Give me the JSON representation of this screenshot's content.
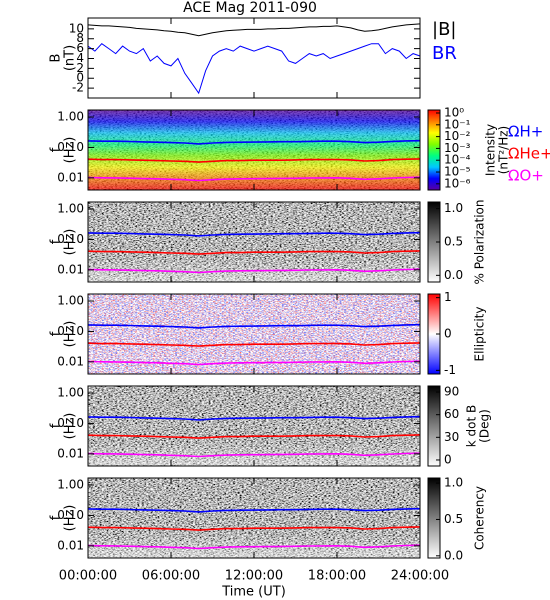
{
  "chart_data": [
    {
      "type": "line",
      "title": "ACE Mag 2011-090",
      "y_label_lines": [
        "B",
        "(nT)"
      ],
      "ylim": [
        -4,
        12.2
      ],
      "yticks": [
        -2,
        0,
        2,
        4,
        6,
        8,
        10
      ],
      "x": [
        0,
        0.5,
        1,
        1.5,
        2,
        2.5,
        3,
        3.5,
        4,
        4.5,
        5,
        5.5,
        6,
        6.5,
        7,
        7.5,
        8,
        8.5,
        9,
        9.5,
        10,
        10.5,
        11,
        11.5,
        12,
        12.5,
        13,
        13.5,
        14,
        14.5,
        15,
        15.5,
        16,
        16.5,
        17,
        17.5,
        18,
        18.5,
        19,
        19.5,
        20,
        20.5,
        21,
        21.5,
        22,
        22.5,
        23,
        23.5,
        24
      ],
      "series": [
        {
          "name": "|B|",
          "color": "#000000",
          "values": [
            10.8,
            10.7,
            10.6,
            10.6,
            10.5,
            10.4,
            10.3,
            10.1,
            10.0,
            9.9,
            9.8,
            9.6,
            9.5,
            9.3,
            9.2,
            8.9,
            8.6,
            8.9,
            9.2,
            9.4,
            9.6,
            9.7,
            9.8,
            9.9,
            9.9,
            9.9,
            10.0,
            10.0,
            10.1,
            10.1,
            10.2,
            10.3,
            10.4,
            10.4,
            10.5,
            10.5,
            10.6,
            10.4,
            10.2,
            9.8,
            9.5,
            9.6,
            9.8,
            10.1,
            10.4,
            10.6,
            10.8,
            10.9,
            11.0
          ]
        },
        {
          "name": "BR",
          "color": "#0000ff",
          "values": [
            6.5,
            5.5,
            7,
            6,
            5,
            6.5,
            5.5,
            5,
            6,
            3.5,
            4.5,
            3,
            2.5,
            4,
            1,
            -1,
            -3,
            1.5,
            4.5,
            5.5,
            6,
            5.5,
            6.5,
            6,
            5.5,
            6,
            6.5,
            6,
            5.5,
            3.5,
            3,
            4,
            5,
            4.5,
            5,
            4,
            4.5,
            5,
            5.5,
            6,
            6.5,
            7,
            7,
            5,
            6,
            5.5,
            4,
            5,
            4.5
          ]
        }
      ]
    },
    {
      "type": "spectrogram",
      "y_label_lines": [
        "f",
        "(Hz)"
      ],
      "yscale": "log",
      "ylim": [
        0.004,
        1.7
      ],
      "yticks": [
        {
          "value": 1,
          "label": "1.00"
        },
        {
          "value": 0.1,
          "label": "0.10"
        },
        {
          "value": 0.01,
          "label": "0.01"
        }
      ],
      "colorbar": {
        "label_lines": [
          "Intensity",
          "(nT²/Hz)"
        ],
        "scale": "log",
        "lim": [
          3e-07,
          1.8
        ],
        "ticks": [
          {
            "value": 1,
            "label": "10⁰"
          },
          {
            "value": 0.1,
            "label": "10⁻¹"
          },
          {
            "value": 0.01,
            "label": "10⁻²"
          },
          {
            "value": 0.001,
            "label": "10⁻³"
          },
          {
            "value": 0.0001,
            "label": "10⁻⁴"
          },
          {
            "value": 1e-05,
            "label": "10⁻⁵"
          },
          {
            "value": 1e-06,
            "label": "10⁻⁶"
          }
        ],
        "colors": [
          "#5a00a0",
          "#0000ff",
          "#00c8ff",
          "#00ff80",
          "#80ff00",
          "#ffff00",
          "#ff8000",
          "#ff0000"
        ]
      },
      "x": [
        0,
        1,
        2,
        3,
        4,
        5,
        6,
        7,
        8,
        9,
        10,
        11,
        12,
        13,
        14,
        15,
        16,
        17,
        18,
        19,
        20,
        21,
        22,
        23,
        24
      ],
      "series": [
        {
          "name": "ΩH+",
          "color": "#0000ff",
          "values": [
            0.164,
            0.161,
            0.16,
            0.157,
            0.152,
            0.149,
            0.144,
            0.14,
            0.131,
            0.14,
            0.146,
            0.149,
            0.15,
            0.152,
            0.154,
            0.155,
            0.158,
            0.16,
            0.161,
            0.155,
            0.144,
            0.149,
            0.158,
            0.164,
            0.167
          ]
        },
        {
          "name": "ΩHe+",
          "color": "#ff0000",
          "values": [
            0.041,
            0.04,
            0.04,
            0.039,
            0.038,
            0.037,
            0.036,
            0.035,
            0.033,
            0.035,
            0.037,
            0.037,
            0.038,
            0.038,
            0.038,
            0.039,
            0.04,
            0.04,
            0.04,
            0.039,
            0.036,
            0.037,
            0.04,
            0.041,
            0.042
          ]
        },
        {
          "name": "ΩO+",
          "color": "#ff00ff",
          "values": [
            0.0103,
            0.0101,
            0.01,
            0.0098,
            0.0095,
            0.0093,
            0.009,
            0.0087,
            0.0082,
            0.0087,
            0.0091,
            0.0093,
            0.0094,
            0.0095,
            0.0096,
            0.0097,
            0.0099,
            0.01,
            0.0101,
            0.0097,
            0.009,
            0.0093,
            0.0099,
            0.0103,
            0.0105
          ]
        }
      ]
    },
    {
      "type": "spectrogram",
      "y_label_lines": [
        "f",
        "(Hz)"
      ],
      "yscale": "log",
      "ylim": [
        0.004,
        1.7
      ],
      "yticks": [
        {
          "value": 1,
          "label": "1.00"
        },
        {
          "value": 0.1,
          "label": "0.10"
        },
        {
          "value": 0.01,
          "label": "0.01"
        }
      ],
      "colorbar": {
        "label_lines": [
          "% Polarization"
        ],
        "scale": "linear",
        "lim": [
          -0.1,
          1.1
        ],
        "ticks": [
          {
            "value": 1,
            "label": "1.0"
          },
          {
            "value": 0.5,
            "label": "0.5"
          },
          {
            "value": 0,
            "label": "0.0"
          }
        ],
        "colors": [
          "#ffffff",
          "#000000"
        ]
      },
      "x": [
        0,
        1,
        2,
        3,
        4,
        5,
        6,
        7,
        8,
        9,
        10,
        11,
        12,
        13,
        14,
        15,
        16,
        17,
        18,
        19,
        20,
        21,
        22,
        23,
        24
      ],
      "series": [
        {
          "color": "#0000ff",
          "values": [
            0.164,
            0.161,
            0.16,
            0.157,
            0.152,
            0.149,
            0.144,
            0.14,
            0.131,
            0.14,
            0.146,
            0.149,
            0.15,
            0.152,
            0.154,
            0.155,
            0.158,
            0.16,
            0.161,
            0.155,
            0.144,
            0.149,
            0.158,
            0.164,
            0.167
          ]
        },
        {
          "color": "#ff0000",
          "values": [
            0.041,
            0.04,
            0.04,
            0.039,
            0.038,
            0.037,
            0.036,
            0.035,
            0.033,
            0.035,
            0.037,
            0.037,
            0.038,
            0.038,
            0.038,
            0.039,
            0.04,
            0.04,
            0.04,
            0.039,
            0.036,
            0.037,
            0.04,
            0.041,
            0.042
          ]
        },
        {
          "color": "#ff00ff",
          "values": [
            0.0103,
            0.0101,
            0.01,
            0.0098,
            0.0095,
            0.0093,
            0.009,
            0.0087,
            0.0082,
            0.0087,
            0.0091,
            0.0093,
            0.0094,
            0.0095,
            0.0096,
            0.0097,
            0.0099,
            0.01,
            0.0101,
            0.0097,
            0.009,
            0.0093,
            0.0099,
            0.0103,
            0.0105
          ]
        }
      ]
    },
    {
      "type": "spectrogram",
      "y_label_lines": [
        "f",
        "(Hz)"
      ],
      "yscale": "log",
      "ylim": [
        0.004,
        1.7
      ],
      "yticks": [
        {
          "value": 1,
          "label": "1.00"
        },
        {
          "value": 0.1,
          "label": "0.10"
        },
        {
          "value": 0.01,
          "label": "0.01"
        }
      ],
      "colorbar": {
        "label_lines": [
          "Ellipticity"
        ],
        "scale": "linear",
        "lim": [
          -1.1,
          1.1
        ],
        "ticks": [
          1,
          0,
          -1
        ],
        "colors": [
          "#0000ff",
          "#ffffff",
          "#ff0000"
        ]
      },
      "x": [
        0,
        1,
        2,
        3,
        4,
        5,
        6,
        7,
        8,
        9,
        10,
        11,
        12,
        13,
        14,
        15,
        16,
        17,
        18,
        19,
        20,
        21,
        22,
        23,
        24
      ],
      "series": [
        {
          "color": "#0000ff",
          "values": [
            0.164,
            0.161,
            0.16,
            0.157,
            0.152,
            0.149,
            0.144,
            0.14,
            0.131,
            0.14,
            0.146,
            0.149,
            0.15,
            0.152,
            0.154,
            0.155,
            0.158,
            0.16,
            0.161,
            0.155,
            0.144,
            0.149,
            0.158,
            0.164,
            0.167
          ]
        },
        {
          "color": "#ff0000",
          "values": [
            0.041,
            0.04,
            0.04,
            0.039,
            0.038,
            0.037,
            0.036,
            0.035,
            0.033,
            0.035,
            0.037,
            0.037,
            0.038,
            0.038,
            0.038,
            0.039,
            0.04,
            0.04,
            0.04,
            0.039,
            0.036,
            0.037,
            0.04,
            0.041,
            0.042
          ]
        },
        {
          "color": "#ff00ff",
          "values": [
            0.0103,
            0.0101,
            0.01,
            0.0098,
            0.0095,
            0.0093,
            0.009,
            0.0087,
            0.0082,
            0.0087,
            0.0091,
            0.0093,
            0.0094,
            0.0095,
            0.0096,
            0.0097,
            0.0099,
            0.01,
            0.0101,
            0.0097,
            0.009,
            0.0093,
            0.0099,
            0.0103,
            0.0105
          ]
        }
      ]
    },
    {
      "type": "spectrogram",
      "y_label_lines": [
        "f",
        "(Hz)"
      ],
      "yscale": "log",
      "ylim": [
        0.004,
        1.7
      ],
      "yticks": [
        {
          "value": 1,
          "label": "1.00"
        },
        {
          "value": 0.1,
          "label": "0.10"
        },
        {
          "value": 0.01,
          "label": "0.01"
        }
      ],
      "colorbar": {
        "label_lines": [
          "k dot B",
          "(Deg)"
        ],
        "scale": "linear",
        "lim": [
          -8,
          98
        ],
        "ticks": [
          90,
          60,
          30,
          0
        ],
        "colors": [
          "#ffffff",
          "#000000"
        ]
      },
      "x": [
        0,
        1,
        2,
        3,
        4,
        5,
        6,
        7,
        8,
        9,
        10,
        11,
        12,
        13,
        14,
        15,
        16,
        17,
        18,
        19,
        20,
        21,
        22,
        23,
        24
      ],
      "series": [
        {
          "color": "#0000ff",
          "values": [
            0.164,
            0.161,
            0.16,
            0.157,
            0.152,
            0.149,
            0.144,
            0.14,
            0.131,
            0.14,
            0.146,
            0.149,
            0.15,
            0.152,
            0.154,
            0.155,
            0.158,
            0.16,
            0.161,
            0.155,
            0.144,
            0.149,
            0.158,
            0.164,
            0.167
          ]
        },
        {
          "color": "#ff0000",
          "values": [
            0.041,
            0.04,
            0.04,
            0.039,
            0.038,
            0.037,
            0.036,
            0.035,
            0.033,
            0.035,
            0.037,
            0.037,
            0.038,
            0.038,
            0.038,
            0.039,
            0.04,
            0.04,
            0.04,
            0.039,
            0.036,
            0.037,
            0.04,
            0.041,
            0.042
          ]
        },
        {
          "color": "#ff00ff",
          "values": [
            0.0103,
            0.0101,
            0.01,
            0.0098,
            0.0095,
            0.0093,
            0.009,
            0.0087,
            0.0082,
            0.0087,
            0.0091,
            0.0093,
            0.0094,
            0.0095,
            0.0096,
            0.0097,
            0.0099,
            0.01,
            0.0101,
            0.0097,
            0.009,
            0.0093,
            0.0099,
            0.0103,
            0.0105
          ]
        }
      ]
    },
    {
      "type": "spectrogram",
      "y_label_lines": [
        "f",
        "(Hz)"
      ],
      "yscale": "log",
      "ylim": [
        0.004,
        1.7
      ],
      "yticks": [
        {
          "value": 1,
          "label": "1.00"
        },
        {
          "value": 0.1,
          "label": "0.10"
        },
        {
          "value": 0.01,
          "label": "0.01"
        }
      ],
      "colorbar": {
        "label_lines": [
          "Coherency"
        ],
        "scale": "linear",
        "lim": [
          -0.03,
          1.07
        ],
        "ticks": [
          {
            "value": 1,
            "label": "1.0"
          },
          {
            "value": 0.5,
            "label": "0.5"
          },
          {
            "value": 0,
            "label": "0.0"
          }
        ],
        "colors": [
          "#ffffff",
          "#000000"
        ]
      },
      "x": [
        0,
        1,
        2,
        3,
        4,
        5,
        6,
        7,
        8,
        9,
        10,
        11,
        12,
        13,
        14,
        15,
        16,
        17,
        18,
        19,
        20,
        21,
        22,
        23,
        24
      ],
      "series": [
        {
          "color": "#0000ff",
          "values": [
            0.164,
            0.161,
            0.16,
            0.157,
            0.152,
            0.149,
            0.144,
            0.14,
            0.131,
            0.14,
            0.146,
            0.149,
            0.15,
            0.152,
            0.154,
            0.155,
            0.158,
            0.16,
            0.161,
            0.155,
            0.144,
            0.149,
            0.158,
            0.164,
            0.167
          ]
        },
        {
          "color": "#ff0000",
          "values": [
            0.041,
            0.04,
            0.04,
            0.039,
            0.038,
            0.037,
            0.036,
            0.035,
            0.033,
            0.035,
            0.037,
            0.037,
            0.038,
            0.038,
            0.038,
            0.039,
            0.04,
            0.04,
            0.04,
            0.039,
            0.036,
            0.037,
            0.04,
            0.041,
            0.042
          ]
        },
        {
          "color": "#ff00ff",
          "values": [
            0.0103,
            0.0101,
            0.01,
            0.0098,
            0.0095,
            0.0093,
            0.009,
            0.0087,
            0.0082,
            0.0087,
            0.0091,
            0.0093,
            0.0094,
            0.0095,
            0.0096,
            0.0097,
            0.0099,
            0.01,
            0.0101,
            0.0097,
            0.009,
            0.0093,
            0.0099,
            0.0103,
            0.0105
          ]
        }
      ],
      "xlim": [
        0,
        24
      ],
      "xticks": [
        {
          "value": 0,
          "label": "00:00:00"
        },
        {
          "value": 6,
          "label": "06:00:00"
        },
        {
          "value": 12,
          "label": "12:00:00"
        },
        {
          "value": 18,
          "label": "18:00:00"
        },
        {
          "value": 24,
          "label": "24:00:00"
        }
      ],
      "x_label": "Time (UT)"
    }
  ]
}
